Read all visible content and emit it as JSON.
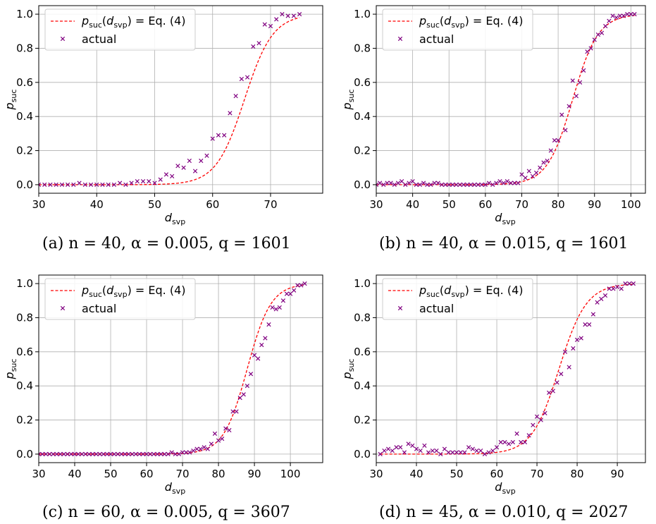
{
  "legend": {
    "fit_prefix": "p",
    "fit_sub": "suc",
    "fit_arg_prefix": "(d",
    "fit_arg_sub": "svp",
    "fit_suffix": ") = Eq. (4)",
    "actual": "actual"
  },
  "axis_labels": {
    "x_main": "d",
    "x_sub": "svp",
    "y_main": "p",
    "y_sub": "suc"
  },
  "colors": {
    "fit": "#ff0000",
    "actual": "#800080",
    "grid": "#b0b0b0"
  },
  "chart_data": [
    {
      "type": "scatter",
      "caption": "(a) n = 40, α = 0.005, q = 1601",
      "xlim": [
        30,
        79
      ],
      "ylim": [
        -0.05,
        1.05
      ],
      "xticks": [
        30,
        40,
        50,
        60,
        70
      ],
      "yticks": [
        0.0,
        0.2,
        0.4,
        0.6,
        0.8,
        1.0
      ],
      "grid": true,
      "legend_position": "top-left",
      "fit_params": {
        "center": 65.5,
        "scale": 2.45
      },
      "series": [
        {
          "name": "p_suc(d_svp) = Eq. (4)",
          "kind": "dashed-line",
          "x": [
            30,
            38,
            45,
            50,
            53,
            55,
            57,
            58,
            59,
            60,
            61,
            62,
            63,
            64,
            65,
            66,
            67,
            68,
            69,
            70,
            71,
            72,
            73,
            74,
            75
          ],
          "y": [
            0.0,
            0.0,
            0.0,
            0.002,
            0.01,
            0.022,
            0.047,
            0.07,
            0.1,
            0.14,
            0.19,
            0.26,
            0.33,
            0.42,
            0.5,
            0.58,
            0.65,
            0.72,
            0.8,
            0.86,
            0.9,
            0.93,
            0.96,
            0.98,
            0.99
          ]
        },
        {
          "name": "actual",
          "kind": "markers",
          "x": [
            30,
            31,
            32,
            33,
            34,
            35,
            36,
            37,
            38,
            39,
            40,
            41,
            42,
            43,
            44,
            45,
            46,
            47,
            48,
            49,
            50,
            51,
            52,
            53,
            54,
            55,
            56,
            57,
            58,
            59,
            60,
            61,
            62,
            63,
            64,
            65,
            66,
            67,
            68,
            69,
            70,
            71,
            72,
            73,
            74,
            75
          ],
          "y": [
            0,
            0,
            0,
            0,
            0,
            0,
            0,
            0.01,
            0,
            0,
            0,
            0,
            0,
            0,
            0.01,
            0,
            0.01,
            0.02,
            0.02,
            0.02,
            0.01,
            0.03,
            0.06,
            0.05,
            0.11,
            0.1,
            0.14,
            0.08,
            0.14,
            0.17,
            0.27,
            0.29,
            0.29,
            0.42,
            0.52,
            0.62,
            0.63,
            0.81,
            0.83,
            0.94,
            0.93,
            0.97,
            1.0,
            0.99,
            0.99,
            1.0
          ]
        }
      ]
    },
    {
      "type": "scatter",
      "caption": "(b) n = 40, α = 0.015, q = 1601",
      "xlim": [
        30,
        104
      ],
      "ylim": [
        -0.05,
        1.05
      ],
      "xticks": [
        30,
        40,
        50,
        60,
        70,
        80,
        90,
        100
      ],
      "yticks": [
        0.0,
        0.2,
        0.4,
        0.6,
        0.8,
        1.0
      ],
      "grid": true,
      "legend_position": "top-left",
      "fit_params": {
        "center": 84.0,
        "scale": 3.5
      },
      "series": [
        {
          "name": "p_suc(d_svp) = Eq. (4)",
          "kind": "dashed-line",
          "x": [
            30,
            50,
            60,
            65,
            68,
            70,
            72,
            74,
            76,
            78,
            80,
            82,
            84,
            86,
            88,
            90,
            92,
            94,
            96,
            98,
            100,
            101
          ],
          "y": [
            0,
            0,
            0.001,
            0.008,
            0.013,
            0.02,
            0.03,
            0.06,
            0.1,
            0.15,
            0.23,
            0.37,
            0.5,
            0.63,
            0.76,
            0.86,
            0.92,
            0.96,
            0.98,
            0.99,
            1.0,
            1.0
          ]
        },
        {
          "name": "actual",
          "kind": "markers",
          "x": [
            30,
            31,
            32,
            33,
            34,
            35,
            36,
            37,
            38,
            39,
            40,
            41,
            42,
            43,
            44,
            45,
            46,
            47,
            48,
            49,
            50,
            51,
            52,
            53,
            54,
            55,
            56,
            57,
            58,
            59,
            60,
            61,
            62,
            63,
            64,
            65,
            66,
            67,
            68,
            69,
            70,
            71,
            72,
            73,
            74,
            75,
            76,
            77,
            78,
            79,
            80,
            81,
            82,
            83,
            84,
            85,
            86,
            87,
            88,
            89,
            90,
            91,
            92,
            93,
            94,
            95,
            96,
            97,
            98,
            99,
            100,
            101
          ],
          "y": [
            0,
            0.01,
            0,
            0.01,
            0.01,
            0,
            0.01,
            0.02,
            0,
            0.01,
            0.02,
            0,
            0,
            0.01,
            0,
            0,
            0.01,
            0.01,
            0,
            0,
            0,
            0,
            0,
            0,
            0,
            0,
            0,
            0,
            0,
            0,
            0,
            0.01,
            0,
            0.01,
            0.02,
            0.01,
            0.02,
            0.01,
            0.01,
            0.01,
            0.06,
            0.04,
            0.08,
            0.05,
            0.07,
            0.1,
            0.13,
            0.14,
            0.2,
            0.26,
            0.26,
            0.41,
            0.32,
            0.46,
            0.61,
            0.52,
            0.6,
            0.67,
            0.78,
            0.8,
            0.85,
            0.88,
            0.89,
            0.93,
            0.96,
            0.99,
            0.98,
            0.99,
            0.99,
            1.0,
            1.0,
            1.0
          ]
        }
      ]
    },
    {
      "type": "scatter",
      "caption": "(c) n = 60, α = 0.005, q = 3607",
      "xlim": [
        30,
        109
      ],
      "ylim": [
        -0.05,
        1.05
      ],
      "xticks": [
        30,
        40,
        50,
        60,
        70,
        80,
        90,
        100
      ],
      "yticks": [
        0.0,
        0.2,
        0.4,
        0.6,
        0.8,
        1.0
      ],
      "grid": true,
      "legend_position": "top-left",
      "fit_params": {
        "center": 88.0,
        "scale": 3.3
      },
      "series": [
        {
          "name": "p_suc(d_svp) = Eq. (4)",
          "kind": "dashed-line",
          "x": [
            30,
            60,
            68,
            70,
            72,
            74,
            76,
            78,
            80,
            82,
            84,
            86,
            88,
            90,
            92,
            94,
            96,
            98,
            100,
            102,
            104
          ],
          "y": [
            0,
            0,
            0.002,
            0.005,
            0.01,
            0.02,
            0.04,
            0.07,
            0.11,
            0.17,
            0.27,
            0.4,
            0.5,
            0.64,
            0.76,
            0.86,
            0.93,
            0.96,
            0.98,
            0.99,
            1.0
          ]
        },
        {
          "name": "actual",
          "kind": "markers",
          "x": [
            30,
            31,
            32,
            33,
            34,
            35,
            36,
            37,
            38,
            39,
            40,
            41,
            42,
            43,
            44,
            45,
            46,
            47,
            48,
            49,
            50,
            51,
            52,
            53,
            54,
            55,
            56,
            57,
            58,
            59,
            60,
            61,
            62,
            63,
            64,
            65,
            66,
            67,
            68,
            69,
            70,
            71,
            72,
            73,
            74,
            75,
            76,
            77,
            78,
            79,
            80,
            81,
            82,
            83,
            84,
            85,
            86,
            87,
            88,
            89,
            90,
            91,
            92,
            93,
            94,
            95,
            96,
            97,
            98,
            99,
            100,
            101,
            102,
            103,
            104
          ],
          "y": [
            0,
            0,
            0,
            0,
            0,
            0,
            0,
            0,
            0,
            0,
            0,
            0,
            0,
            0,
            0,
            0,
            0,
            0,
            0,
            0,
            0,
            0,
            0,
            0,
            0,
            0,
            0,
            0,
            0,
            0,
            0,
            0,
            0,
            0,
            0,
            0,
            0,
            0.01,
            0,
            0,
            0.01,
            0.01,
            0.01,
            0.02,
            0.03,
            0.03,
            0.04,
            0.03,
            0.06,
            0.12,
            0.08,
            0.09,
            0.15,
            0.14,
            0.25,
            0.25,
            0.33,
            0.35,
            0.4,
            0.47,
            0.58,
            0.56,
            0.64,
            0.68,
            0.76,
            0.86,
            0.85,
            0.86,
            0.9,
            0.94,
            0.94,
            0.96,
            0.99,
            0.99,
            1.0
          ]
        }
      ]
    },
    {
      "type": "scatter",
      "caption": "(d) n = 45, α = 0.010, q = 2027",
      "xlim": [
        30,
        97
      ],
      "ylim": [
        -0.05,
        1.05
      ],
      "xticks": [
        30,
        40,
        50,
        60,
        70,
        80,
        90
      ],
      "yticks": [
        0.0,
        0.2,
        0.4,
        0.6,
        0.8,
        1.0
      ],
      "grid": true,
      "legend_position": "top-left",
      "fit_params": {
        "center": 75.5,
        "scale": 3.4
      },
      "series": [
        {
          "name": "p_suc(d_svp) = Eq. (4)",
          "kind": "dashed-line",
          "x": [
            31,
            40,
            50,
            55,
            58,
            60,
            62,
            64,
            66,
            68,
            70,
            72,
            74,
            76,
            78,
            80,
            82,
            84,
            86,
            88,
            90,
            92,
            94
          ],
          "y": [
            0,
            0,
            0.002,
            0.006,
            0.015,
            0.03,
            0.05,
            0.07,
            0.1,
            0.15,
            0.22,
            0.31,
            0.42,
            0.55,
            0.66,
            0.77,
            0.84,
            0.9,
            0.93,
            0.96,
            0.98,
            0.99,
            1.0
          ]
        },
        {
          "name": "actual",
          "kind": "markers",
          "x": [
            31,
            32,
            33,
            34,
            35,
            36,
            37,
            38,
            39,
            40,
            41,
            42,
            43,
            44,
            45,
            46,
            47,
            48,
            49,
            50,
            51,
            52,
            53,
            54,
            55,
            56,
            57,
            58,
            59,
            60,
            61,
            62,
            63,
            64,
            65,
            66,
            67,
            68,
            69,
            70,
            71,
            72,
            73,
            74,
            75,
            76,
            77,
            78,
            79,
            80,
            81,
            82,
            83,
            84,
            85,
            86,
            87,
            88,
            89,
            90,
            91,
            92,
            93,
            94
          ],
          "y": [
            0,
            0.02,
            0.03,
            0.02,
            0.04,
            0.04,
            0.01,
            0.06,
            0.05,
            0.03,
            0.02,
            0.05,
            0.01,
            0.02,
            0.02,
            0,
            0.03,
            0.01,
            0.01,
            0.01,
            0.01,
            0.01,
            0.04,
            0.03,
            0.02,
            0.02,
            0,
            0.01,
            0.02,
            0.04,
            0.07,
            0.07,
            0.06,
            0.07,
            0.12,
            0.07,
            0.07,
            0.11,
            0.17,
            0.22,
            0.2,
            0.24,
            0.36,
            0.37,
            0.42,
            0.47,
            0.6,
            0.51,
            0.62,
            0.67,
            0.68,
            0.76,
            0.76,
            0.82,
            0.89,
            0.91,
            0.93,
            0.97,
            0.97,
            0.98,
            0.97,
            1.0,
            1.0,
            1.0
          ]
        }
      ]
    }
  ]
}
